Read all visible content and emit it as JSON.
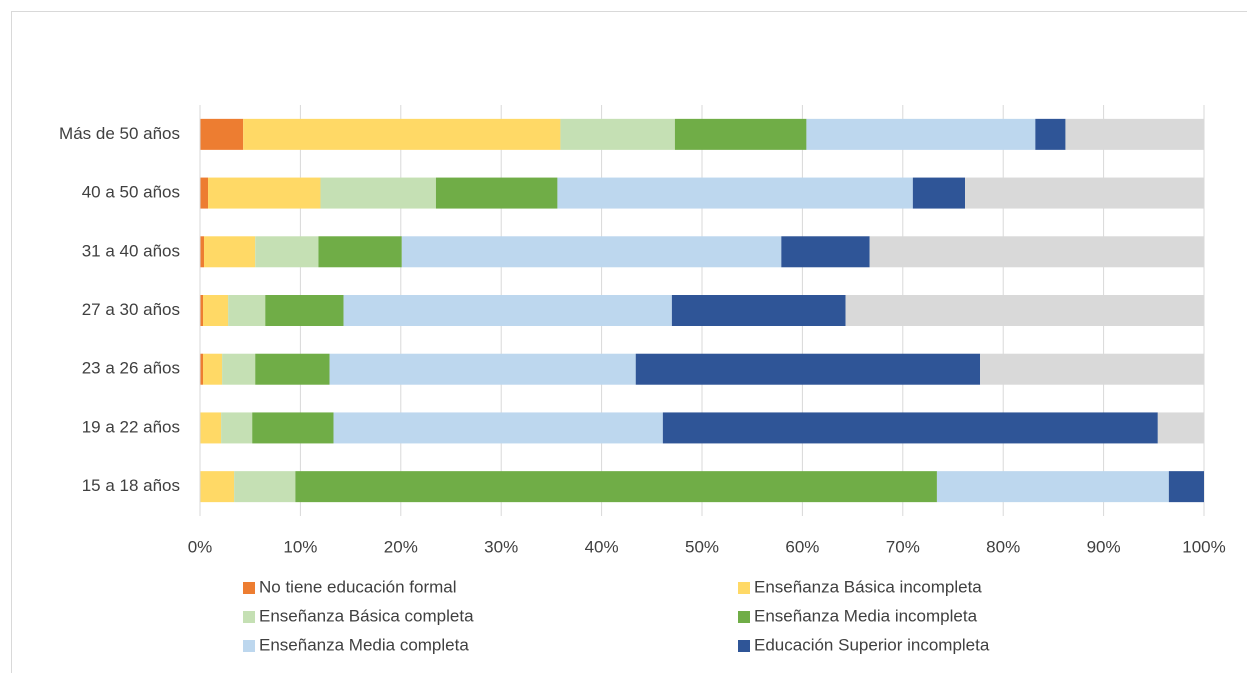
{
  "chart_data": {
    "type": "stacked_barh",
    "categories": [
      "Más de 50 años",
      "40 a 50 años",
      "31 a 40 años",
      "27 a 30 años",
      "23 a 26 años",
      "19 a 22 años",
      "15 a 18 años"
    ],
    "series": [
      {
        "name": "No tiene educación formal",
        "color": "#ed7d31",
        "values": [
          4.3,
          0.8,
          0.4,
          0.3,
          0.3,
          0,
          0
        ]
      },
      {
        "name": "Enseñanza Básica incompleta",
        "color": "#ffd966",
        "values": [
          31.6,
          11.2,
          5.1,
          2.5,
          1.9,
          2.1,
          3.4
        ]
      },
      {
        "name": "Enseñanza Básica completa",
        "color": "#c5e0b4",
        "values": [
          11.4,
          11.5,
          6.3,
          3.7,
          3.3,
          3.1,
          6.1
        ]
      },
      {
        "name": "Enseñanza Media incompleta",
        "color": "#70ad47",
        "values": [
          13.1,
          12.1,
          8.3,
          7.8,
          7.4,
          8.1,
          63.9
        ]
      },
      {
        "name": "Enseñanza Media completa",
        "color": "#bdd7ee",
        "values": [
          22.8,
          35.4,
          37.8,
          32.7,
          30.5,
          32.8,
          23.1
        ]
      },
      {
        "name": "Educación Superior incompleta",
        "color": "#2f5597",
        "values": [
          3.0,
          5.2,
          8.8,
          17.3,
          34.3,
          49.3,
          3.5
        ]
      },
      {
        "color": "#d9d9d9",
        "values": [
          13.8,
          23.8,
          33.3,
          35.7,
          22.3,
          4.6,
          0
        ]
      }
    ],
    "xlim": [
      0,
      100
    ],
    "xticks": [
      {
        "value": 0,
        "label": "0%"
      },
      {
        "value": 10,
        "label": "10%"
      },
      {
        "value": 20,
        "label": "20%"
      },
      {
        "value": 30,
        "label": "30%"
      },
      {
        "value": 40,
        "label": "40%"
      },
      {
        "value": 50,
        "label": "50%"
      },
      {
        "value": 60,
        "label": "60%"
      },
      {
        "value": 70,
        "label": "70%"
      },
      {
        "value": 80,
        "label": "80%"
      },
      {
        "value": 90,
        "label": "90%"
      },
      {
        "value": 100,
        "label": "100%"
      }
    ],
    "grid": true
  }
}
